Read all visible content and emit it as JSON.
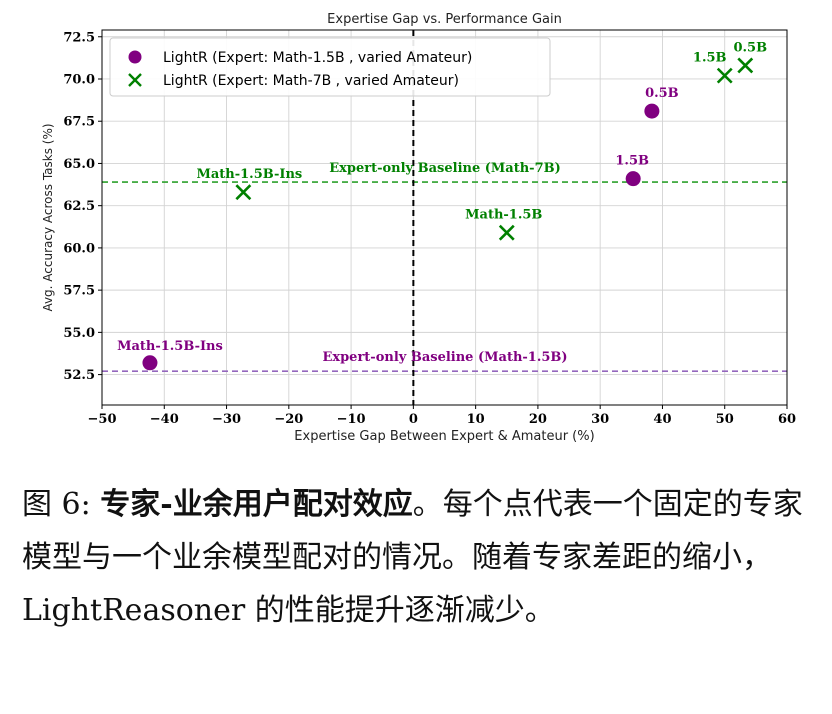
{
  "chart_data": {
    "type": "scatter",
    "title": "Expertise Gap vs. Performance Gain",
    "xlabel": "Expertise Gap Between Expert & Amateur (%)",
    "ylabel": "Avg. Accuracy Across Tasks (%)",
    "xlim": [
      -50,
      60
    ],
    "ylim": [
      50.7,
      72.9
    ],
    "xticks": [
      "−50",
      "−40",
      "−30",
      "−20",
      "−10",
      "0",
      "10",
      "20",
      "30",
      "40",
      "50",
      "60"
    ],
    "yticks": [
      "52.5",
      "55.0",
      "57.5",
      "60.0",
      "62.5",
      "65.0",
      "67.5",
      "70.0",
      "72.5"
    ],
    "grid": true,
    "legend_position": "top-left",
    "series": [
      {
        "name": "LightR (Expert: Math-1.5B , varied Amateur)",
        "marker": "circle",
        "color": "#800080",
        "points": [
          {
            "x": -42.3,
            "y": 53.2,
            "label": "Math-1.5B-Ins"
          },
          {
            "x": 35.3,
            "y": 64.1,
            "label": "1.5B"
          },
          {
            "x": 38.3,
            "y": 68.1,
            "label": "0.5B"
          }
        ]
      },
      {
        "name": "LightR (Expert: Math-7B , varied Amateur)",
        "marker": "x",
        "color": "#008000",
        "points": [
          {
            "x": -27.3,
            "y": 63.3,
            "label": "Math-1.5B-Ins"
          },
          {
            "x": 15.0,
            "y": 60.9,
            "label": "Math-1.5B"
          },
          {
            "x": 50.0,
            "y": 70.2,
            "label": "1.5B"
          },
          {
            "x": 53.3,
            "y": 70.8,
            "label": "0.5B"
          }
        ]
      }
    ],
    "baselines": [
      {
        "y": 63.9,
        "label": "Expert-only Baseline (Math-7B)",
        "color": "#2ca02c"
      },
      {
        "y": 52.7,
        "label": "Expert-only Baseline (Math-1.5B)",
        "color": "#9467bd"
      }
    ],
    "vertical_line": {
      "x": 0,
      "color": "#000000"
    }
  },
  "caption": {
    "prefix": "图 6: ",
    "lead": "专家-业余用户配对效应",
    "body": "。每个点代表一个固定的专家模型与一个业余模型配对的情况。随着专家差距的缩小，LightReasoner 的性能提升逐渐减少。"
  }
}
